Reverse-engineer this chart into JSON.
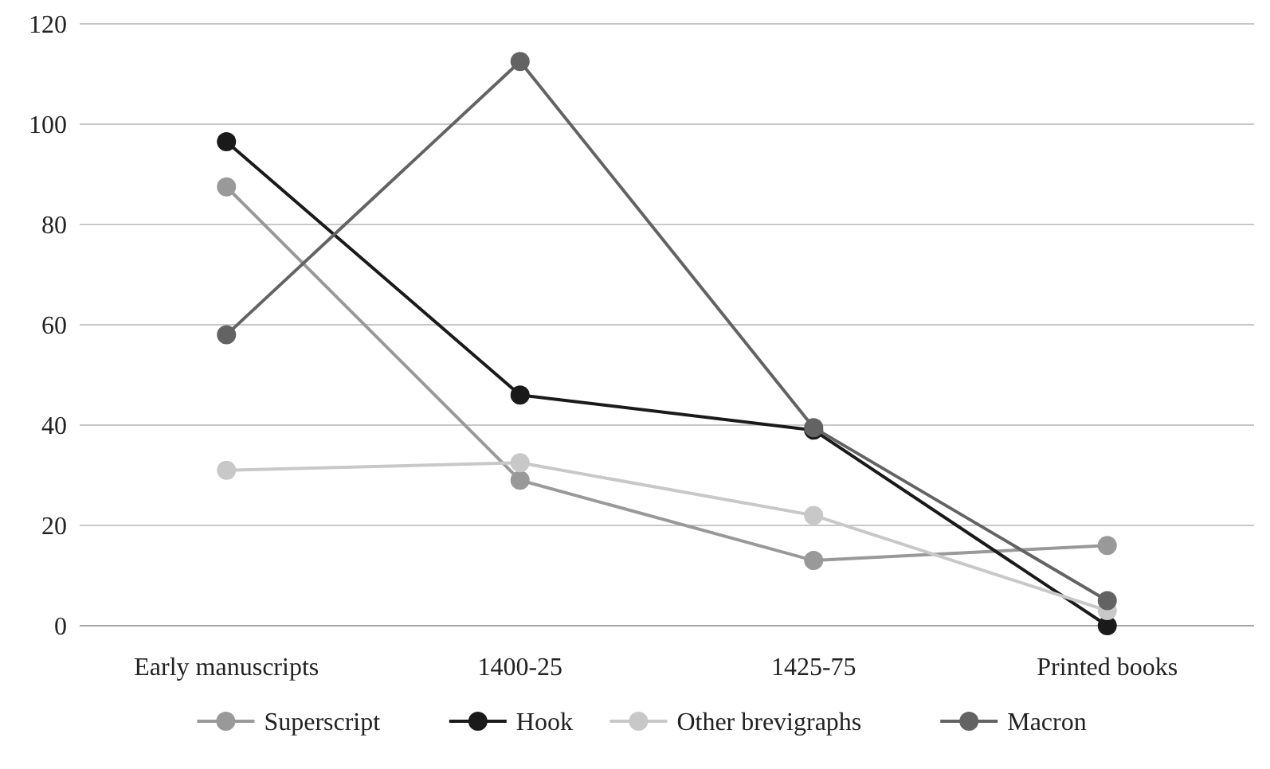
{
  "chart_data": {
    "type": "line",
    "categories": [
      "Early manuscripts",
      "1400-25",
      "1425-75",
      "Printed books"
    ],
    "series": [
      {
        "name": "Superscript",
        "color": "#999999",
        "values": [
          87.5,
          29,
          13,
          16
        ]
      },
      {
        "name": "Hook",
        "color": "#1a1a1a",
        "values": [
          96.5,
          46,
          39,
          0
        ]
      },
      {
        "name": "Other brevigraphs",
        "color": "#c8c8c8",
        "values": [
          31,
          32.5,
          22,
          3
        ]
      },
      {
        "name": "Macron",
        "color": "#636363",
        "values": [
          58,
          112.5,
          39.5,
          5
        ]
      }
    ],
    "ylim": [
      0,
      120
    ],
    "yticks": [
      0,
      20,
      40,
      60,
      80,
      100,
      120
    ],
    "grid": "y",
    "legend": "bottom",
    "marker": "circle",
    "line_style": "solid"
  }
}
